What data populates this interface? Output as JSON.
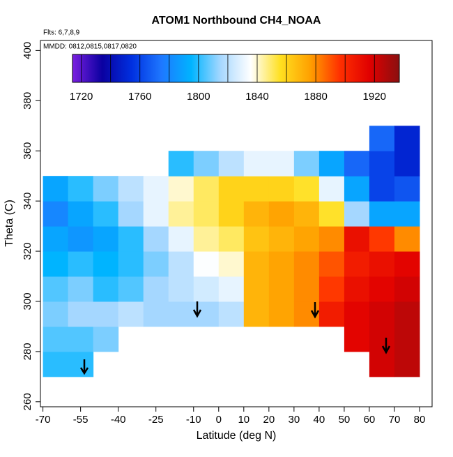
{
  "chart_data": {
    "type": "heatmap",
    "title": "ATOM1 Northbound CH4_NOAA",
    "note_flights": "Flts: 6,7,8,9",
    "note_dates": "MMDD: 0812,0815,0817,0820",
    "x_label": "Latitude (deg N)",
    "y_label": "Theta (C)",
    "x": [
      -65,
      -55,
      -45,
      -35,
      -25,
      -15,
      -5,
      5,
      15,
      25,
      35,
      45,
      55,
      65,
      75
    ],
    "y": [
      275,
      285,
      295,
      305,
      315,
      325,
      335,
      345,
      355,
      365
    ],
    "z": [
      [
        1800,
        1800,
        null,
        null,
        null,
        null,
        null,
        null,
        null,
        null,
        null,
        null,
        null,
        1920,
        1925
      ],
      [
        1805,
        1805,
        1810,
        null,
        null,
        null,
        null,
        null,
        null,
        null,
        null,
        null,
        1915,
        1920,
        1925
      ],
      [
        1810,
        1815,
        1815,
        1820,
        1815,
        1815,
        1815,
        1820,
        1870,
        1875,
        1880,
        1905,
        1915,
        1920,
        1925
      ],
      [
        1805,
        1810,
        1800,
        1805,
        1815,
        1820,
        1825,
        1830,
        1870,
        1875,
        1880,
        1895,
        1910,
        1915,
        1920
      ],
      [
        1795,
        1800,
        1795,
        1800,
        1810,
        1820,
        1835,
        1840,
        1870,
        1875,
        1880,
        1890,
        1905,
        1910,
        1915
      ],
      [
        1790,
        1785,
        1790,
        1800,
        1815,
        1830,
        1845,
        1850,
        1865,
        1870,
        1875,
        1880,
        1910,
        1895,
        1880
      ],
      [
        1780,
        1790,
        1800,
        1815,
        1830,
        1845,
        1850,
        1860,
        1870,
        1875,
        1870,
        1855,
        1815,
        1790,
        1790
      ],
      [
        1790,
        1800,
        1810,
        1820,
        1830,
        1840,
        1850,
        1860,
        1860,
        1860,
        1855,
        1830,
        1790,
        1760,
        1765
      ],
      [
        null,
        null,
        null,
        null,
        null,
        1800,
        1810,
        1820,
        1830,
        1830,
        1810,
        1790,
        1770,
        1760,
        1750
      ],
      [
        null,
        null,
        null,
        null,
        null,
        null,
        null,
        null,
        null,
        null,
        null,
        null,
        null,
        1770,
        1750
      ]
    ],
    "xlim": [
      -71,
      85
    ],
    "ylim": [
      258,
      404
    ],
    "xticks": [
      -70,
      -55,
      -40,
      -25,
      -10,
      0,
      10,
      20,
      30,
      40,
      50,
      60,
      70,
      80
    ],
    "yticks": [
      260,
      280,
      300,
      320,
      340,
      360,
      380,
      400
    ],
    "colorbar": {
      "lim": [
        1714,
        1937
      ],
      "ticks": [
        1720,
        1760,
        1800,
        1840,
        1880,
        1920
      ],
      "breaks": [
        1720,
        1740,
        1760,
        1780,
        1800,
        1820,
        1840,
        1860,
        1880,
        1900,
        1920
      ],
      "colors": [
        "#7a1fe0",
        "#0a00a0",
        "#0030e0",
        "#1e78ff",
        "#00b4ff",
        "#a8d8ff",
        "#ffffff",
        "#ffe020",
        "#ffa000",
        "#ff3000",
        "#e00000",
        "#8a1010"
      ]
    }
  }
}
